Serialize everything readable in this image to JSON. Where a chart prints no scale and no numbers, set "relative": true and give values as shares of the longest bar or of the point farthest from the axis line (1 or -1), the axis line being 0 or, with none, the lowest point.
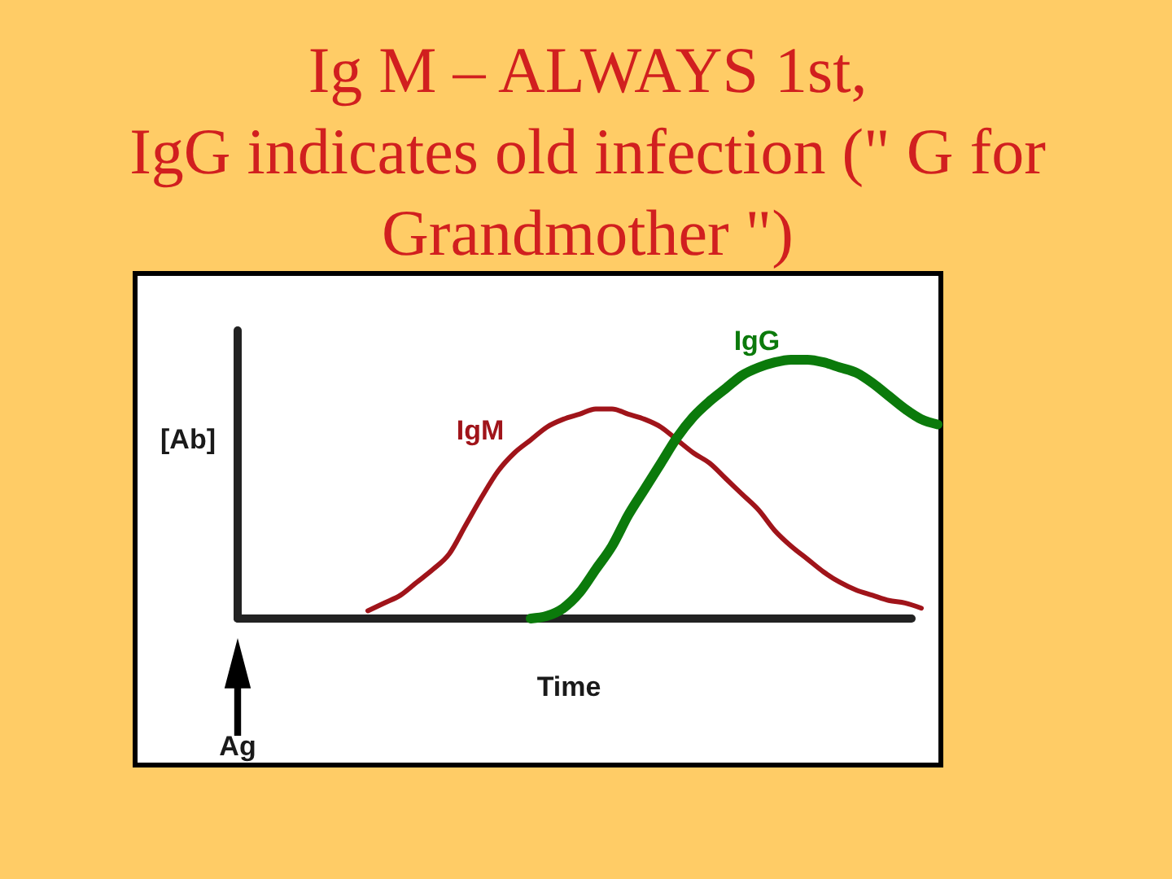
{
  "chart_data": {
    "type": "line",
    "title": "Ig M – ALWAYS 1st,\nIgG indicates old infection (\" G for\nGrandmother \")",
    "xlabel": "Time",
    "ylabel": "[Ab]",
    "annotations": [
      "Ag"
    ],
    "categories": [
      null,
      null,
      null,
      null,
      null,
      null,
      null,
      null,
      null,
      null,
      null,
      null,
      null,
      null,
      null,
      null,
      null,
      null,
      null,
      null,
      null,
      null,
      null,
      null,
      null,
      null,
      null,
      null,
      null,
      null,
      null,
      null,
      null,
      null,
      null,
      null,
      null,
      null,
      null,
      null,
      null,
      null,
      null,
      null
    ],
    "relative": true,
    "series": [
      {
        "name": "IgM",
        "color": "#a0141a",
        "values": [
          null,
          null,
          null,
          null,
          null,
          null,
          null,
          null,
          0.03,
          0.06,
          0.09,
          0.14,
          0.19,
          0.25,
          0.36,
          0.47,
          0.57,
          0.64,
          0.69,
          0.74,
          0.77,
          0.79,
          0.81,
          0.81,
          0.79,
          0.77,
          0.74,
          0.69,
          0.64,
          0.6,
          0.54,
          0.48,
          0.42,
          0.34,
          0.28,
          0.23,
          0.18,
          0.14,
          0.11,
          0.09,
          0.07,
          0.06,
          0.04,
          null
        ]
      },
      {
        "name": "IgG",
        "color": "#0b7a0b",
        "values": [
          null,
          null,
          null,
          null,
          null,
          null,
          null,
          null,
          null,
          null,
          null,
          null,
          null,
          null,
          null,
          null,
          null,
          null,
          0.0,
          0.01,
          0.04,
          0.1,
          0.19,
          0.28,
          0.4,
          0.5,
          0.6,
          0.7,
          0.78,
          0.84,
          0.89,
          0.94,
          0.97,
          0.99,
          1.0,
          1.0,
          0.99,
          0.97,
          0.95,
          0.91,
          0.86,
          0.81,
          0.77,
          0.75
        ]
      }
    ],
    "legend": false,
    "grid": false,
    "tick_labels": false,
    "marker": "none",
    "line_style": "solid"
  }
}
